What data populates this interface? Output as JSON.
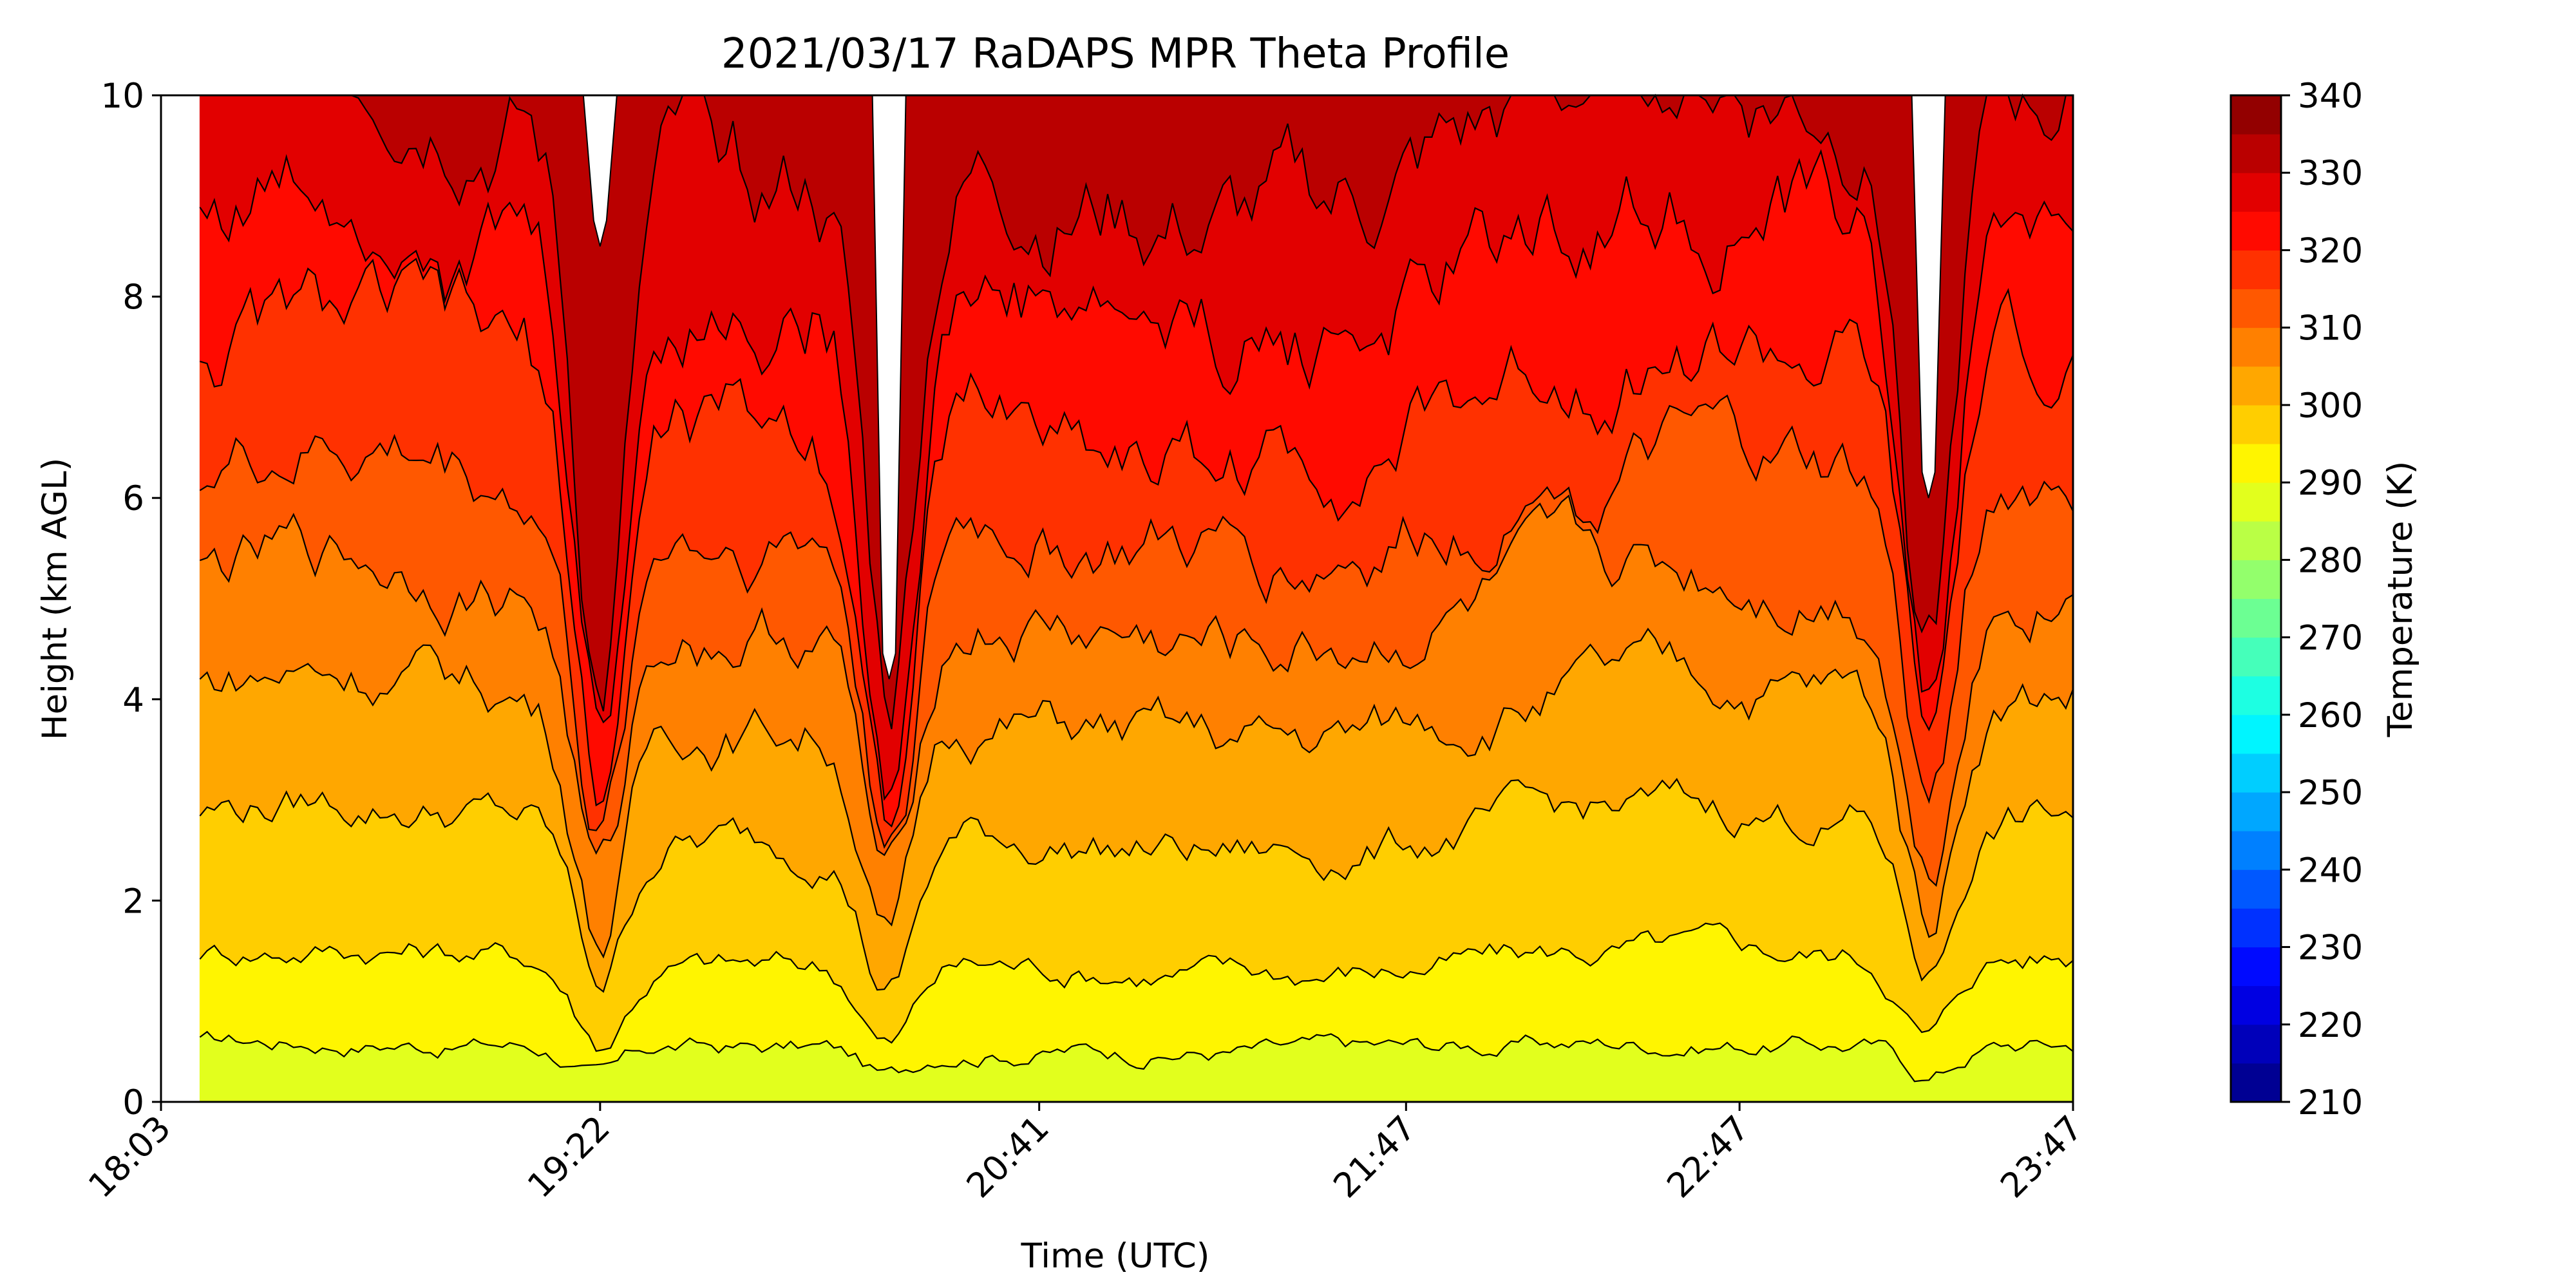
{
  "chart_data": {
    "type": "filled-contour",
    "title": "2021/03/17 RaDAPS MPR Theta Profile",
    "xlabel": "Time (UTC)",
    "ylabel": "Height (km AGL)",
    "x_ticks": [
      "18:03",
      "19:22",
      "20:41",
      "21:47",
      "22:47",
      "23:47"
    ],
    "x_tick_minutes": [
      1083,
      1162,
      1241,
      1307,
      1367,
      1427
    ],
    "xlim_minutes": [
      1083,
      1427
    ],
    "y_ticks": [
      "0",
      "2",
      "4",
      "6",
      "8",
      "10"
    ],
    "ylim_km": [
      0,
      10
    ],
    "colorbar": {
      "label": "Temperature (K)",
      "ticks": [
        "210",
        "220",
        "230",
        "240",
        "250",
        "260",
        "270",
        "280",
        "290",
        "300",
        "310",
        "320",
        "330",
        "340"
      ],
      "range": [
        210,
        340
      ],
      "level_step": 5,
      "colormap": "jet"
    },
    "data_start_minutes": 1090,
    "contour_levels_shown": [
      285,
      290,
      295,
      300,
      305,
      310,
      315,
      320,
      325,
      330,
      335,
      340
    ],
    "boundary_heights_km": [
      {
        "level": 290,
        "mean_height": 0.55
      },
      {
        "level": 295,
        "mean_height": 1.4
      },
      {
        "level": 300,
        "mean_height": 2.7
      },
      {
        "level": 305,
        "mean_height": 3.9
      },
      {
        "level": 310,
        "mean_height": 4.9
      },
      {
        "level": 315,
        "mean_height": 5.9
      },
      {
        "level": 320,
        "mean_height": 7.0
      },
      {
        "level": 325,
        "mean_height": 8.3
      },
      {
        "level": 330,
        "mean_height": 9.5
      }
    ],
    "data_gaps": [
      {
        "time": 1162,
        "from_height": 8.5
      },
      {
        "time": 1214,
        "from_height": 4.2
      },
      {
        "time": 1401,
        "from_height": 6.0
      }
    ]
  }
}
